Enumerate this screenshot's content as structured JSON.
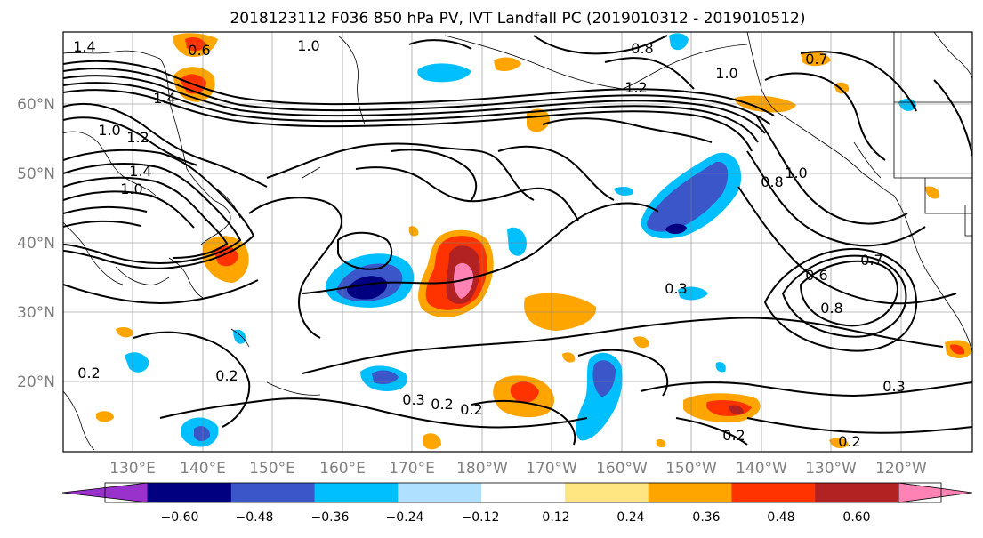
{
  "title": "2018123112 F036 850 hPa PV, IVT Landfall PC (2019010312 - 2019010512)",
  "lat_labels": [
    "60°N",
    "50°N",
    "40°N",
    "30°N",
    "20°N"
  ],
  "lon_labels": [
    "130°E",
    "140°E",
    "150°E",
    "160°E",
    "170°E",
    "180°W",
    "170°W",
    "160°W",
    "150°W",
    "140°W",
    "130°W",
    "120°W"
  ],
  "contour_labels": [
    "1.4",
    "0.6",
    "1.0",
    "0.8",
    "1.0",
    "1.2",
    "0.7",
    "1.4",
    "1.2",
    "1.0",
    "1.4",
    "1.0",
    "1.0",
    "0.8",
    "0.7",
    "0.3",
    "0.6",
    "0.8",
    "0.2",
    "0.2",
    "0.3",
    "0.2",
    "0.2",
    "0.3",
    "0.2",
    "0.2"
  ],
  "colorbar": {
    "ticks": [
      "−0.60",
      "−0.48",
      "−0.36",
      "−0.24",
      "−0.12",
      "0.12",
      "0.24",
      "0.36",
      "0.48",
      "0.60"
    ],
    "colors": [
      "#9932cc",
      "#000080",
      "#3a56c8",
      "#00bfff",
      "#b0e0ff",
      "#ffffff",
      "#ffe680",
      "#ffa500",
      "#ff3300",
      "#b22222",
      "#ff82b4"
    ]
  },
  "colors": {
    "contour": "#000000",
    "grid": "#808080",
    "coast": "#000000",
    "axis_label": "#808080"
  }
}
